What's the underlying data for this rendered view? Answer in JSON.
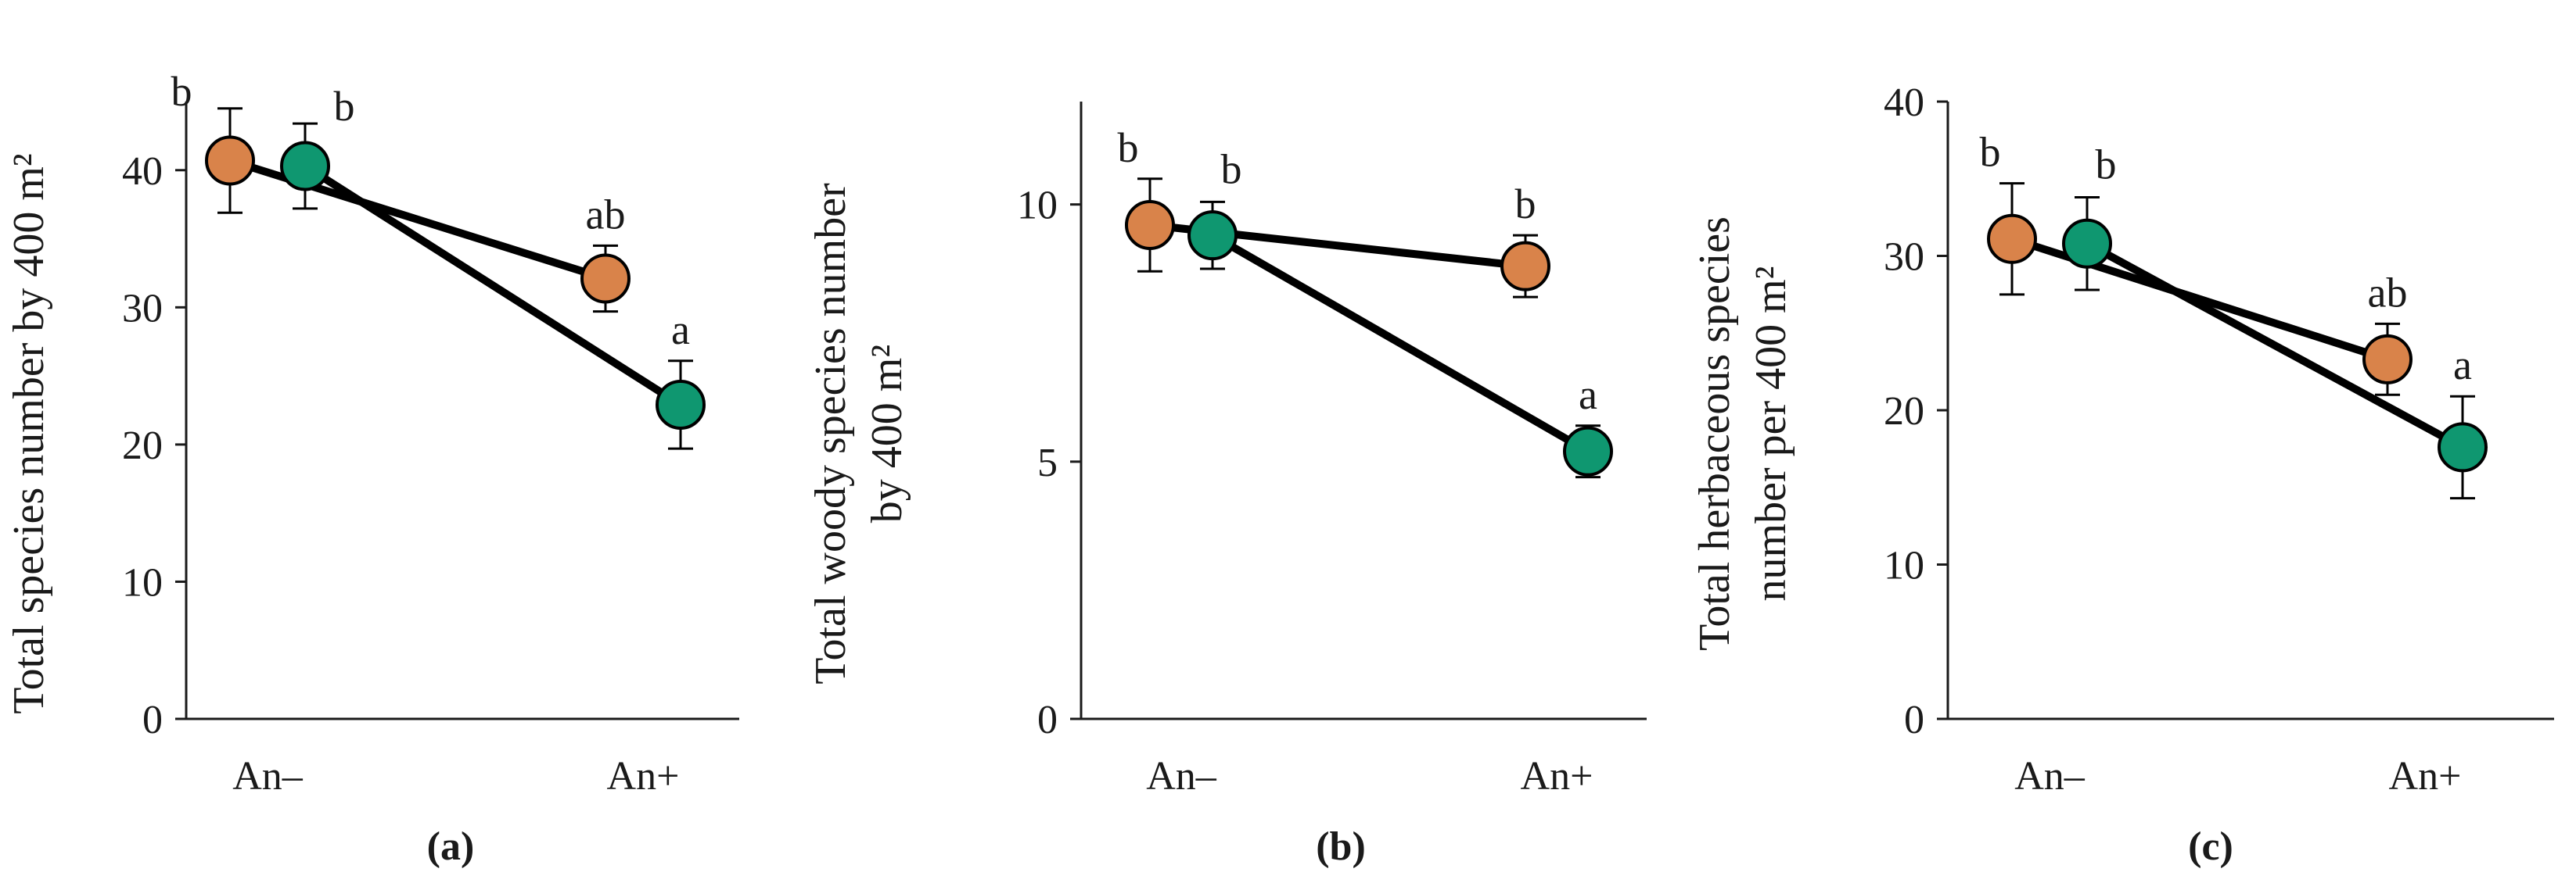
{
  "colors": {
    "series_1": "#d9834a",
    "series_2": "#0f9770"
  },
  "chart_data": [
    {
      "type": "line",
      "panel_label": "(a)",
      "ylabel_lines": [
        "Total species number by 400 m²"
      ],
      "categories": [
        "An–",
        "An+"
      ],
      "ylim": [
        0,
        45
      ],
      "yticks": [
        "0",
        "10",
        "20",
        "30",
        "40"
      ],
      "series": [
        {
          "name": "series_1",
          "values": [
            40.7,
            32.1
          ],
          "err": [
            3.8,
            2.4
          ],
          "labels": [
            "b",
            "ab"
          ]
        },
        {
          "name": "series_2",
          "values": [
            40.3,
            22.9
          ],
          "err": [
            3.1,
            3.2
          ],
          "labels": [
            "b",
            "a"
          ]
        }
      ]
    },
    {
      "type": "line",
      "panel_label": "(b)",
      "ylabel_lines": [
        "Total  woody species number",
        "by 400 m²"
      ],
      "categories": [
        "An–",
        "An+"
      ],
      "ylim": [
        0,
        12
      ],
      "yticks": [
        "0",
        "5",
        "10"
      ],
      "series": [
        {
          "name": "series_1",
          "values": [
            9.6,
            8.8
          ],
          "err": [
            0.9,
            0.6
          ],
          "labels": [
            "b",
            "b"
          ]
        },
        {
          "name": "series_2",
          "values": [
            9.4,
            5.2
          ],
          "err": [
            0.65,
            0.5
          ],
          "labels": [
            "b",
            "a"
          ]
        }
      ]
    },
    {
      "type": "line",
      "panel_label": "(c)",
      "ylabel_lines": [
        "Total herbaceous species",
        "number per 400 m²"
      ],
      "categories": [
        "An–",
        "An+"
      ],
      "ylim": [
        0,
        40
      ],
      "yticks": [
        "0",
        "10",
        "20",
        "30",
        "40"
      ],
      "series": [
        {
          "name": "series_1",
          "values": [
            31.1,
            23.3
          ],
          "err": [
            3.6,
            2.3
          ],
          "labels": [
            "b",
            "ab"
          ]
        },
        {
          "name": "series_2",
          "values": [
            30.8,
            17.6
          ],
          "err": [
            3.0,
            3.3
          ],
          "labels": [
            "b",
            "a"
          ]
        }
      ]
    }
  ]
}
